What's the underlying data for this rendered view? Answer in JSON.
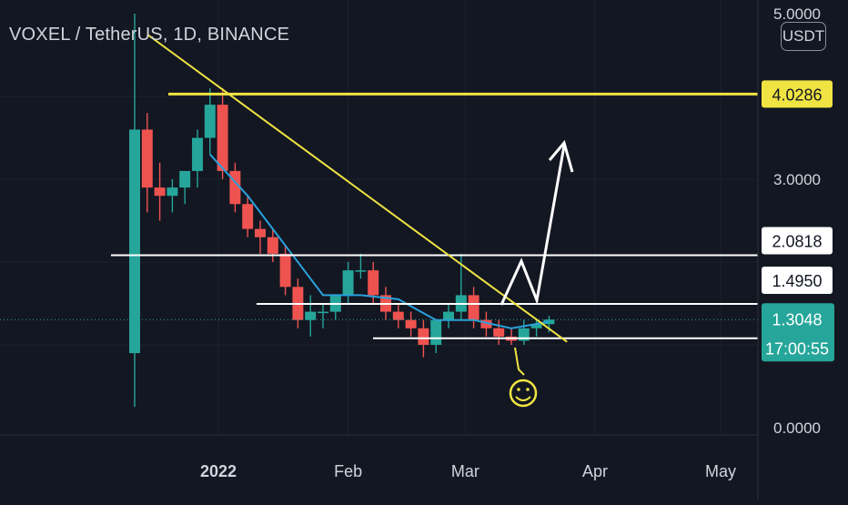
{
  "header": {
    "symbol_title": "VOXEL / TetherUS, 1D, BINANCE",
    "currency": "USDT"
  },
  "chart_data": {
    "type": "candlestick",
    "title": "VOXEL / TetherUS, 1D, BINANCE",
    "x_ticks": [
      "2022",
      "Feb",
      "Mar",
      "Apr",
      "May"
    ],
    "y_ticks": [
      "3.0000",
      "0.0000"
    ],
    "y_ticks_partial": [
      "5.0000"
    ],
    "ylim": [
      0,
      5
    ],
    "series": [
      {
        "type": "candles",
        "x": [
          "2021-12-12",
          "2021-12-15",
          "2021-12-18",
          "2021-12-21",
          "2021-12-24",
          "2021-12-27",
          "2021-12-30",
          "2022-01-02",
          "2022-01-05",
          "2022-01-08",
          "2022-01-11",
          "2022-01-14",
          "2022-01-17",
          "2022-01-20",
          "2022-01-23",
          "2022-01-26",
          "2022-01-29",
          "2022-02-01",
          "2022-02-04",
          "2022-02-07",
          "2022-02-10",
          "2022-02-13",
          "2022-02-16",
          "2022-02-19",
          "2022-02-22",
          "2022-02-25",
          "2022-02-28",
          "2022-03-03",
          "2022-03-06",
          "2022-03-09",
          "2022-03-12",
          "2022-03-15",
          "2022-03-18",
          "2022-03-21"
        ],
        "open": [
          0.9,
          3.6,
          2.9,
          2.8,
          2.9,
          3.1,
          3.5,
          3.9,
          3.1,
          2.7,
          2.4,
          2.3,
          2.1,
          1.7,
          1.3,
          1.4,
          1.4,
          1.6,
          1.9,
          1.9,
          1.6,
          1.4,
          1.3,
          1.2,
          1.0,
          1.3,
          1.4,
          1.6,
          1.3,
          1.2,
          1.1,
          1.05,
          1.2,
          1.25
        ],
        "high": [
          5.0,
          3.8,
          3.2,
          3.0,
          3.1,
          3.6,
          4.1,
          4.1,
          3.2,
          2.8,
          2.5,
          2.4,
          2.2,
          1.8,
          1.6,
          1.5,
          1.6,
          2.0,
          2.1,
          2.0,
          1.7,
          1.5,
          1.4,
          1.3,
          1.3,
          1.5,
          2.1,
          1.7,
          1.4,
          1.3,
          1.2,
          1.3,
          1.3,
          1.35
        ],
        "low": [
          0.25,
          2.6,
          2.5,
          2.6,
          2.7,
          2.9,
          3.3,
          3.0,
          2.6,
          2.3,
          2.1,
          2.0,
          1.6,
          1.2,
          1.1,
          1.2,
          1.3,
          1.5,
          1.8,
          1.5,
          1.3,
          1.2,
          1.1,
          0.85,
          0.9,
          1.2,
          1.3,
          1.2,
          1.1,
          1.0,
          1.0,
          1.0,
          1.1,
          1.15
        ],
        "close": [
          3.6,
          2.9,
          2.8,
          2.9,
          3.1,
          3.5,
          3.9,
          3.1,
          2.7,
          2.4,
          2.3,
          2.1,
          1.7,
          1.3,
          1.4,
          1.4,
          1.6,
          1.9,
          1.9,
          1.6,
          1.4,
          1.3,
          1.2,
          1.0,
          1.3,
          1.4,
          1.6,
          1.3,
          1.2,
          1.1,
          1.05,
          1.2,
          1.25,
          1.3048
        ]
      },
      {
        "type": "moving-average",
        "color": "#2aa1dc",
        "x": [
          "2021-12-30",
          "2022-01-08",
          "2022-01-17",
          "2022-01-26",
          "2022-02-04",
          "2022-02-13",
          "2022-02-22",
          "2022-03-03",
          "2022-03-12",
          "2022-03-21"
        ],
        "values": [
          3.3,
          2.8,
          2.2,
          1.6,
          1.6,
          1.55,
          1.3,
          1.3,
          1.2,
          1.28
        ]
      }
    ],
    "horizontal_levels": [
      {
        "price": 4.0286,
        "label": "4.0286",
        "color": "#f0e443"
      },
      {
        "price": 2.0818,
        "label": "2.0818",
        "color": "#ffffff"
      },
      {
        "price": 1.495,
        "label": "1.4950",
        "color": "#ffffff"
      },
      {
        "price": 1.08,
        "label": "",
        "color": "#ffffff"
      }
    ],
    "trendline": {
      "color": "#f0e443",
      "from": [
        "2021-12-15",
        4.75
      ],
      "to": [
        "2022-03-24",
        1.08
      ]
    },
    "projection_arrow": {
      "color": "#ffffff"
    },
    "annotation": {
      "type": "smiley",
      "color": "#f0e443"
    },
    "current_price": {
      "label": "1.3048",
      "countdown": "17:00:55",
      "color": "#26a69a"
    },
    "grid": true,
    "colors": {
      "up": "#26a69a",
      "down": "#ef5350",
      "background": "#131722",
      "text": "#d1d4dc"
    }
  }
}
